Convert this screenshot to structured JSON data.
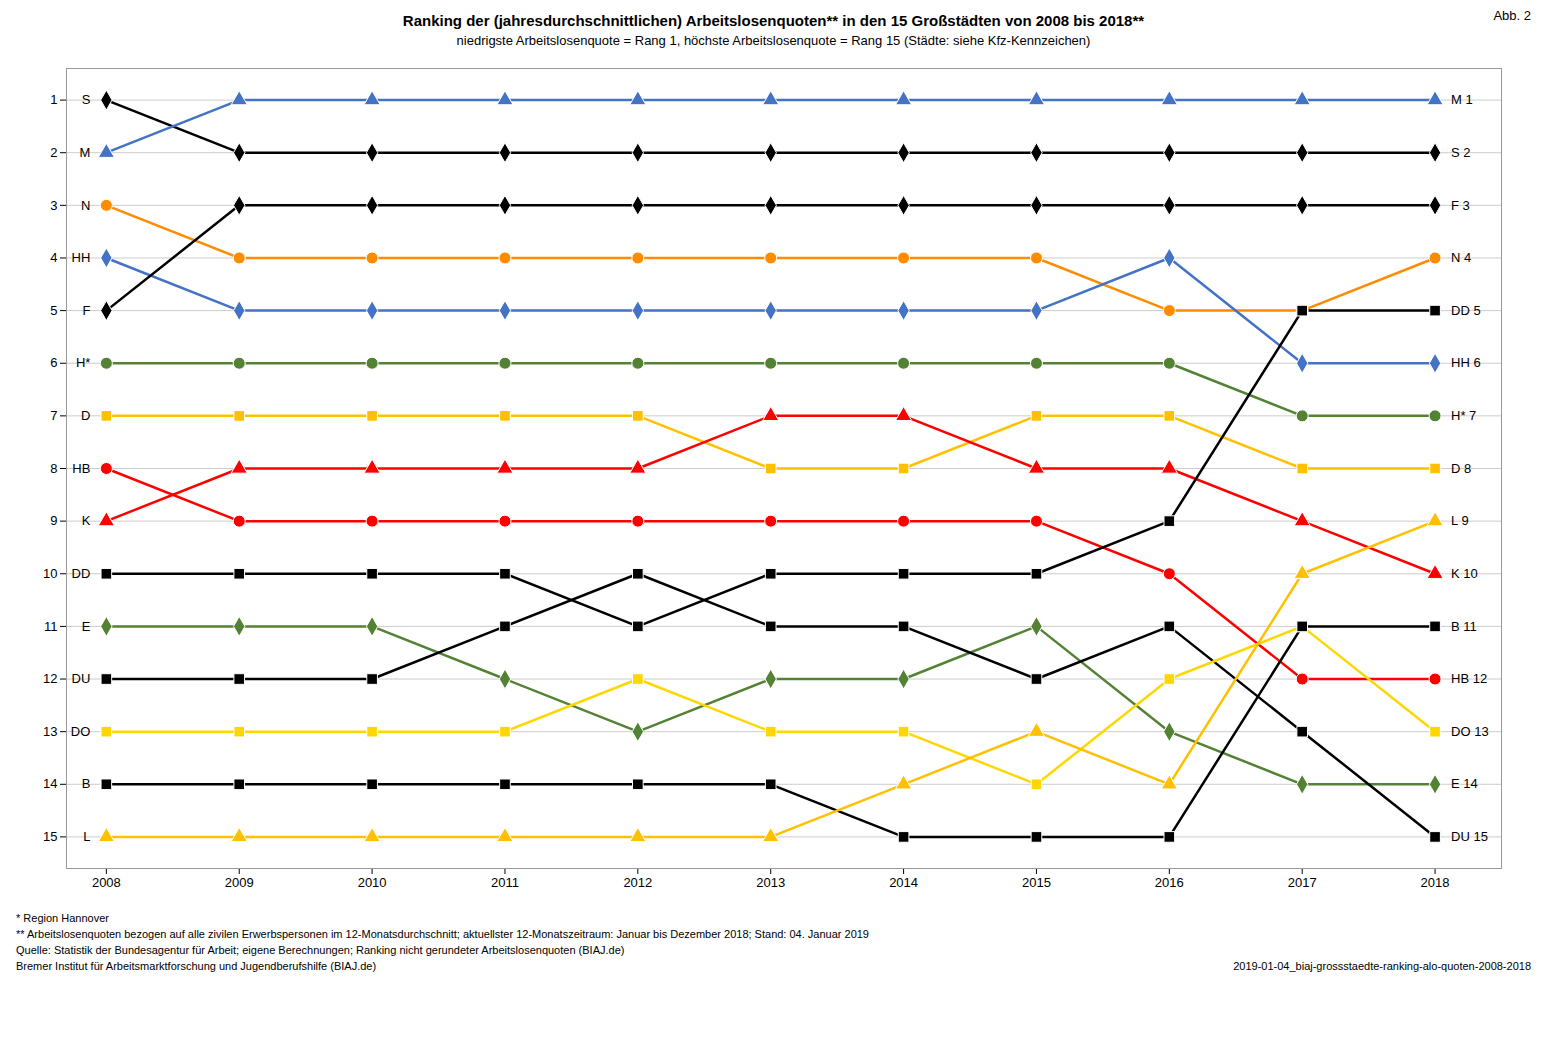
{
  "chart_data": {
    "type": "line",
    "title": "Ranking der (jahresdurchschnittlichen) Arbeitslosenquoten** in den 15 Großstädten von 2008 bis 2018**",
    "subtitle": "niedrigste Arbeitslosenquote = Rang 1, höchste Arbeitslosenquote = Rang 15 (Städte: siehe Kfz-Kennzeichen)",
    "annotations": [
      "Abb. 2",
      "* Region Hannover",
      "** Arbeitslosenquoten  bezogen auf alle zivilen Erwerbspersonen im 12-Monatsdurchschnitt; aktuellster  12-Monatszeitraum:  Januar bis Dezember 2018; Stand: 04. Januar 2019",
      "Quelle: Statistik der Bundesagentur für Arbeit; eigene Berechnungen; Ranking nicht gerundeter Arbeitslosenquoten  (BIAJ.de)",
      "Bremer Institut für Arbeitsmarktforschung  und Jugendberufshilfe (BIAJ.de)",
      "2019-01-04_biaj-grossstaedte-ranking-alo-quoten-2008-2018"
    ],
    "x": [
      2008,
      2009,
      2010,
      2011,
      2012,
      2013,
      2014,
      2015,
      2016,
      2017,
      2018
    ],
    "xlim": [
      2007.7,
      2018.5
    ],
    "xticks": [
      2008,
      2009,
      2010,
      2011,
      2012,
      2013,
      2014,
      2015,
      2016,
      2017,
      2018
    ],
    "ylim": [
      15.6,
      0.4
    ],
    "yticks": [
      1,
      2,
      3,
      4,
      5,
      6,
      7,
      8,
      9,
      10,
      11,
      12,
      13,
      14,
      15
    ],
    "grid": true,
    "series": [
      {
        "name": "S",
        "color": "#000000",
        "marker": "diamond",
        "values": [
          1,
          2,
          2,
          2,
          2,
          2,
          2,
          2,
          2,
          2,
          2
        ],
        "value_labels": [
          "S",
          null,
          null,
          null,
          null,
          null,
          null,
          null,
          null,
          null,
          "S 2"
        ]
      },
      {
        "name": "M",
        "color": "#4472C4",
        "marker": "triangle",
        "values": [
          2,
          1,
          1,
          1,
          1,
          1,
          1,
          1,
          1,
          1,
          1
        ],
        "value_labels": [
          "M",
          null,
          null,
          null,
          null,
          null,
          null,
          null,
          null,
          null,
          "M 1"
        ]
      },
      {
        "name": "N",
        "color": "#FF8C00",
        "marker": "circle",
        "values": [
          3,
          4,
          4,
          4,
          4,
          4,
          4,
          4,
          5,
          5,
          4
        ],
        "value_labels": [
          "N",
          null,
          null,
          null,
          null,
          null,
          null,
          null,
          null,
          null,
          "N 4"
        ]
      },
      {
        "name": "HH",
        "color": "#4472C4",
        "marker": "diamond",
        "values": [
          4,
          5,
          5,
          5,
          5,
          5,
          5,
          5,
          4,
          6,
          6
        ],
        "value_labels": [
          "HH",
          null,
          null,
          null,
          null,
          null,
          null,
          null,
          null,
          null,
          "HH 6"
        ]
      },
      {
        "name": "F",
        "color": "#000000",
        "marker": "diamond",
        "values": [
          5,
          3,
          3,
          3,
          3,
          3,
          3,
          3,
          3,
          3,
          3
        ],
        "value_labels": [
          "F",
          null,
          null,
          null,
          null,
          null,
          null,
          null,
          null,
          null,
          "F 3"
        ]
      },
      {
        "name": "H*",
        "color": "#548235",
        "marker": "circle",
        "values": [
          6,
          6,
          6,
          6,
          6,
          6,
          6,
          6,
          6,
          7,
          7
        ],
        "value_labels": [
          "H*",
          null,
          null,
          null,
          null,
          null,
          null,
          null,
          null,
          null,
          "H* 7"
        ]
      },
      {
        "name": "D",
        "color": "#FFC000",
        "marker": "square",
        "values": [
          7,
          7,
          7,
          7,
          7,
          8,
          8,
          7,
          7,
          8,
          8
        ],
        "value_labels": [
          "D",
          null,
          null,
          null,
          null,
          null,
          null,
          null,
          null,
          null,
          "D 8"
        ]
      },
      {
        "name": "HB",
        "color": "#FF0000",
        "marker": "circle",
        "values": [
          8,
          9,
          9,
          9,
          9,
          9,
          9,
          9,
          10,
          12,
          12
        ],
        "value_labels": [
          "HB",
          null,
          null,
          null,
          null,
          null,
          null,
          null,
          null,
          null,
          "HB 12"
        ]
      },
      {
        "name": "K",
        "color": "#FF0000",
        "marker": "triangle",
        "values": [
          9,
          8,
          8,
          8,
          8,
          7,
          7,
          8,
          8,
          9,
          10
        ],
        "value_labels": [
          "K",
          null,
          null,
          null,
          null,
          null,
          null,
          null,
          null,
          null,
          "K 10"
        ]
      },
      {
        "name": "DD",
        "color": "#000000",
        "marker": "square",
        "values": [
          10,
          10,
          10,
          10,
          11,
          10,
          10,
          10,
          9,
          5,
          5
        ],
        "value_labels": [
          "DD",
          null,
          null,
          null,
          null,
          null,
          null,
          null,
          null,
          null,
          "DD 5"
        ]
      },
      {
        "name": "E",
        "color": "#548235",
        "marker": "diamond",
        "values": [
          11,
          11,
          11,
          12,
          13,
          12,
          12,
          11,
          13,
          14,
          14
        ],
        "value_labels": [
          "E",
          null,
          null,
          null,
          null,
          null,
          null,
          null,
          null,
          null,
          "E 14"
        ]
      },
      {
        "name": "DU",
        "color": "#000000",
        "marker": "square",
        "values": [
          12,
          12,
          12,
          11,
          10,
          11,
          11,
          12,
          11,
          13,
          15
        ],
        "value_labels": [
          "DU",
          null,
          null,
          null,
          null,
          null,
          null,
          null,
          null,
          null,
          "DU 15"
        ]
      },
      {
        "name": "DO",
        "color": "#FFD700",
        "marker": "square",
        "values": [
          13,
          13,
          13,
          13,
          12,
          13,
          13,
          14,
          12,
          11,
          13
        ],
        "value_labels": [
          "DO",
          null,
          null,
          null,
          null,
          null,
          null,
          null,
          null,
          null,
          "DO 13"
        ]
      },
      {
        "name": "B",
        "color": "#000000",
        "marker": "square",
        "values": [
          14,
          14,
          14,
          14,
          14,
          14,
          15,
          15,
          15,
          11,
          11
        ],
        "value_labels": [
          "B",
          null,
          null,
          null,
          null,
          null,
          null,
          null,
          null,
          null,
          "B 11"
        ]
      },
      {
        "name": "L",
        "color": "#FFC000",
        "marker": "triangle",
        "values": [
          15,
          15,
          15,
          15,
          15,
          15,
          14,
          13,
          14,
          10,
          9
        ],
        "value_labels": [
          "L",
          null,
          null,
          null,
          null,
          null,
          null,
          null,
          null,
          null,
          "L 9"
        ]
      }
    ]
  }
}
